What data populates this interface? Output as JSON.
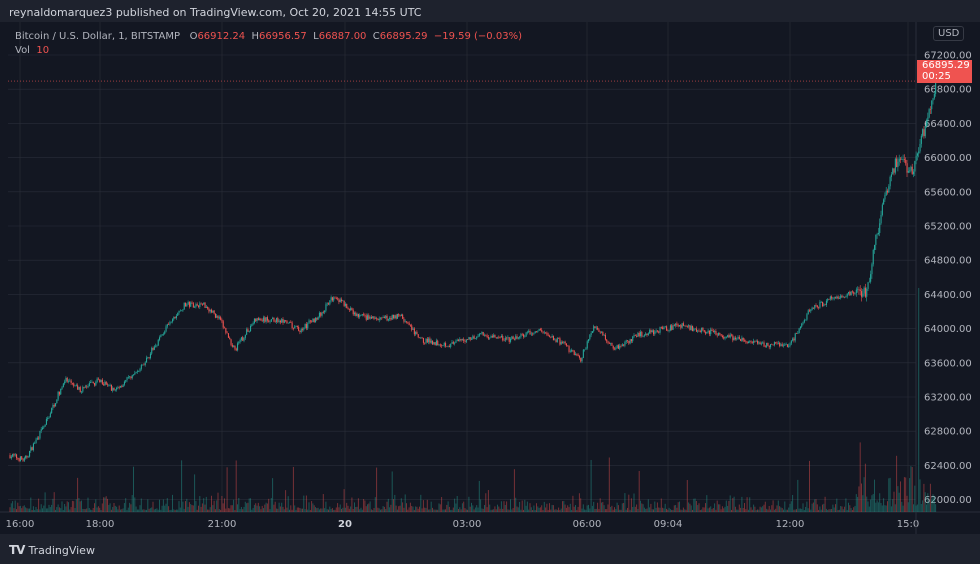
{
  "header": {
    "published": "reynaldomarquez3 published on TradingView.com, Oct 20, 2021 14:55 UTC"
  },
  "legend": {
    "symbol": "Bitcoin / U.S. Dollar, 1, BITSTAMP",
    "open_label": "O",
    "open": "66912.24",
    "high_label": "H",
    "high": "66956.57",
    "low_label": "L",
    "low": "66887.00",
    "close_label": "C",
    "close": "66895.29",
    "change": "−19.59 (−0.03%)",
    "vol_label": "Vol",
    "vol": "10"
  },
  "price_axis": {
    "currency": "USD",
    "last_price": "66895.29",
    "countdown": "00:25"
  },
  "footer": {
    "logo_text": "TradingView"
  },
  "colors": {
    "up": "#26a69a",
    "down": "#ef5350",
    "background": "#131722",
    "grid": "#2a2e39"
  },
  "chart_data": {
    "type": "candlestick",
    "title": "Bitcoin / U.S. Dollar, 1, BITSTAMP",
    "ylim": [
      61900,
      67350
    ],
    "y_ticks": [
      "67200.00",
      "66800.00",
      "66400.00",
      "66000.00",
      "65600.00",
      "65200.00",
      "64800.00",
      "64400.00",
      "64000.00",
      "63600.00",
      "63200.00",
      "62800.00",
      "62400.00",
      "62000.00"
    ],
    "x_ticks": [
      "16:00",
      "18:00",
      "21:00",
      "20",
      "03:00",
      "06:00",
      "09:04",
      "12:00",
      "15:0"
    ],
    "grid": true,
    "approx_close_path": [
      [
        "15:45",
        62520
      ],
      [
        "16:07",
        62460
      ],
      [
        "16:37",
        62870
      ],
      [
        "17:07",
        63400
      ],
      [
        "17:30",
        63280
      ],
      [
        "18:00",
        63400
      ],
      [
        "18:22",
        63280
      ],
      [
        "19:00",
        63520
      ],
      [
        "19:37",
        63980
      ],
      [
        "20:07",
        64280
      ],
      [
        "20:37",
        64280
      ],
      [
        "21:00",
        64100
      ],
      [
        "21:22",
        63750
      ],
      [
        "21:52",
        64100
      ],
      [
        "22:30",
        64100
      ],
      [
        "23:00",
        63980
      ],
      [
        "23:30",
        64160
      ],
      [
        "23:52",
        64390
      ],
      [
        "00:22",
        64160
      ],
      [
        "01:00",
        64100
      ],
      [
        "01:30",
        64160
      ],
      [
        "02:00",
        63870
      ],
      [
        "02:45",
        63810
      ],
      [
        "03:30",
        63930
      ],
      [
        "04:15",
        63870
      ],
      [
        "05:00",
        63980
      ],
      [
        "05:37",
        63810
      ],
      [
        "06:00",
        63630
      ],
      [
        "06:22",
        64040
      ],
      [
        "06:52",
        63770
      ],
      [
        "07:30",
        63930
      ],
      [
        "08:30",
        64040
      ],
      [
        "09:30",
        63930
      ],
      [
        "10:30",
        63810
      ],
      [
        "11:15",
        63810
      ],
      [
        "11:45",
        64220
      ],
      [
        "12:15",
        64340
      ],
      [
        "13:10",
        64450
      ],
      [
        "13:35",
        65500
      ],
      [
        "13:55",
        65970
      ],
      [
        "14:20",
        65850
      ],
      [
        "14:40",
        66440
      ],
      [
        "14:55",
        66895.29
      ]
    ]
  }
}
